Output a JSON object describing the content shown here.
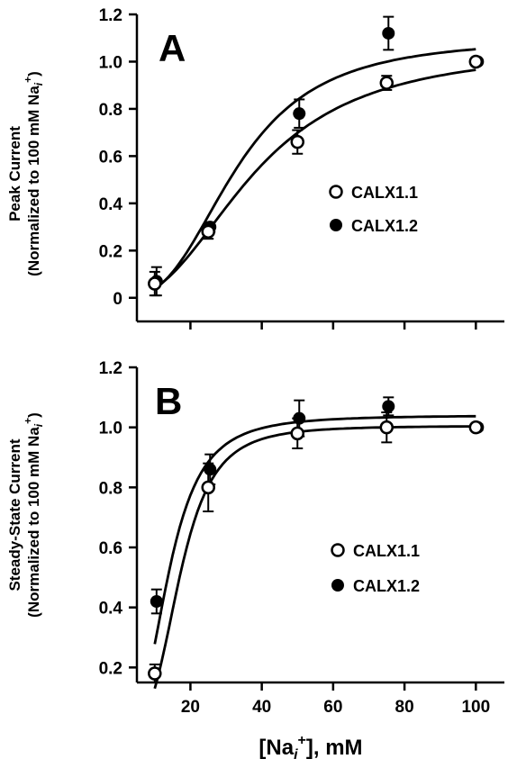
{
  "chart_data": [
    {
      "panel": "A",
      "type": "scatter",
      "panel_label": "A",
      "ylabel": "Peak Current",
      "ylabel_sub": "(Normalized to 100 mM Na",
      "ylabel_sub_sub": "i",
      "ylabel_sub_sup": "+",
      "ylabel_sub_end": ")",
      "xlim": [
        5,
        108
      ],
      "ylim": [
        -0.1,
        1.2
      ],
      "yticks": [
        "0",
        "0.2",
        "0.4",
        "0.6",
        "0.8",
        "1.0",
        "1.2"
      ],
      "ytick_values": [
        0,
        0.2,
        0.4,
        0.6,
        0.8,
        1.0,
        1.2
      ],
      "xtick_values": [
        20,
        40,
        60,
        80,
        100
      ],
      "legend_position": "center-right",
      "series": [
        {
          "name": "CALX1.1",
          "marker": "open-circle",
          "x": [
            10,
            25,
            50,
            75,
            100
          ],
          "y": [
            0.06,
            0.28,
            0.66,
            0.91,
            1.0
          ],
          "err": [
            0.05,
            0.03,
            0.05,
            0.03,
            0.01
          ],
          "fit": {
            "ymax": 1.06,
            "k": 38,
            "n": 2.4
          }
        },
        {
          "name": "CALX1.2",
          "marker": "filled-circle",
          "x": [
            10,
            25,
            50,
            75,
            100
          ],
          "y": [
            0.07,
            0.3,
            0.78,
            1.12,
            1.0
          ],
          "err": [
            0.06,
            0.02,
            0.06,
            0.07,
            0.01
          ],
          "fit": {
            "ymax": 1.1,
            "k": 33,
            "n": 2.8
          }
        }
      ]
    },
    {
      "panel": "B",
      "type": "scatter",
      "panel_label": "B",
      "ylabel": "Steady-State Current",
      "ylabel_sub": "(Normalized to 100 mM Na",
      "ylabel_sub_sub": "i",
      "ylabel_sub_sup": "+",
      "ylabel_sub_end": ")",
      "xlabel_main": "[Na",
      "xlabel_sub": "i",
      "xlabel_sup": "+",
      "xlabel_end": "], mM",
      "xlim": [
        5,
        108
      ],
      "ylim": [
        0.15,
        1.2
      ],
      "yticks": [
        "0.2",
        "0.4",
        "0.6",
        "0.8",
        "1.0",
        "1.2"
      ],
      "ytick_values": [
        0.2,
        0.4,
        0.6,
        0.8,
        1.0,
        1.2
      ],
      "xticks": [
        "20",
        "40",
        "60",
        "80",
        "100"
      ],
      "xtick_values": [
        20,
        40,
        60,
        80,
        100
      ],
      "legend_position": "center-right",
      "series": [
        {
          "name": "CALX1.1",
          "marker": "open-circle",
          "x": [
            10,
            25,
            50,
            75,
            100
          ],
          "y": [
            0.18,
            0.8,
            0.98,
            1.0,
            1.0
          ],
          "err": [
            0.03,
            0.08,
            0.05,
            0.05,
            0.01
          ],
          "fit": {
            "ymax": 1.005,
            "k": 17,
            "n": 3.6
          }
        },
        {
          "name": "CALX1.2",
          "marker": "filled-circle",
          "x": [
            10,
            25,
            50,
            75,
            100
          ],
          "y": [
            0.42,
            0.86,
            1.03,
            1.07,
            1.0
          ],
          "err": [
            0.04,
            0.05,
            0.06,
            0.03,
            0.01
          ],
          "fit": {
            "ymax": 1.04,
            "k": 14,
            "n": 3.0
          }
        }
      ]
    }
  ]
}
